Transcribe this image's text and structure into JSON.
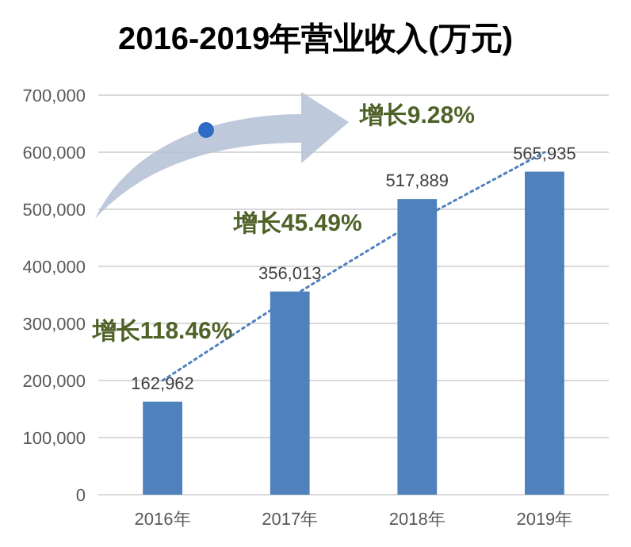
{
  "chart_data": {
    "type": "bar",
    "title": "2016-2019年营业收入(万元)",
    "categories": [
      "2016年",
      "2017年",
      "2018年",
      "2019年"
    ],
    "series": [
      {
        "color": "#4f81bd",
        "values": [
          162962,
          356013,
          517889,
          565935
        ],
        "value_labels": [
          "162,962",
          "356,013",
          "517,889",
          "565,935"
        ]
      },
      {
        "type": "line",
        "color": "#4f81bd",
        "values": [
          200000,
          345000,
          480000,
          600000
        ],
        "line_style": "dotted",
        "marker": "none"
      }
    ],
    "ylim": [
      0,
      700000
    ],
    "yticks": [
      {
        "value": 0,
        "label": "0"
      },
      {
        "value": 100000,
        "label": "100,000"
      },
      {
        "value": 200000,
        "label": "200,000"
      },
      {
        "value": 300000,
        "label": "300,000"
      },
      {
        "value": 400000,
        "label": "400,000"
      },
      {
        "value": 500000,
        "label": "500,000"
      },
      {
        "value": 600000,
        "label": "600,000"
      },
      {
        "value": 700000,
        "label": "700,000"
      }
    ],
    "grid": "y",
    "annotations": [
      "增长118.46%",
      "增长45.49%",
      "增长9.28%"
    ]
  }
}
